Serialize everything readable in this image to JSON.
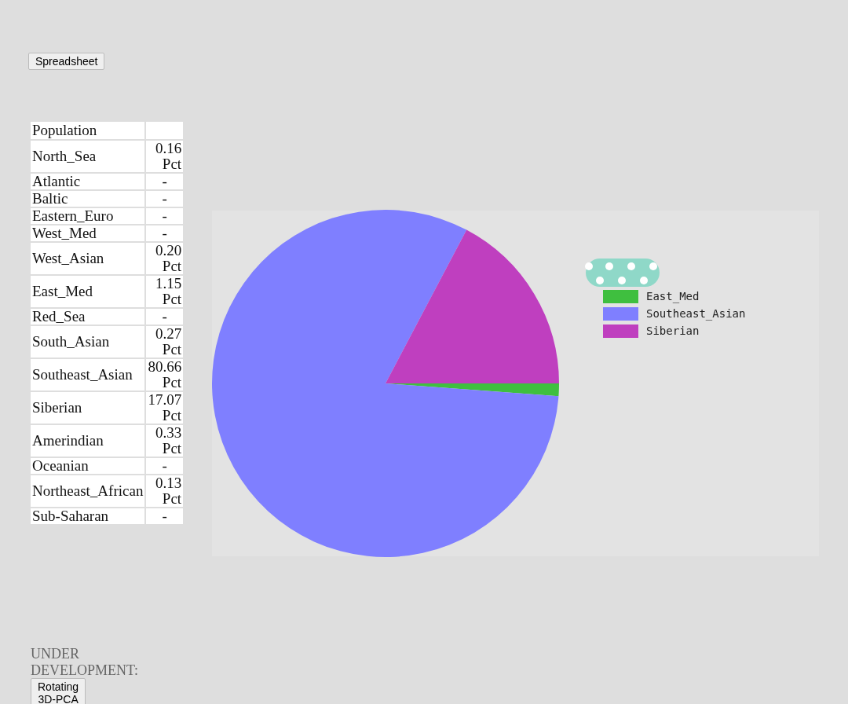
{
  "chart_data": [
    {
      "type": "other",
      "title": "Population",
      "categories": [
        "North_Sea",
        "Atlantic",
        "Baltic",
        "Eastern_Euro",
        "West_Med",
        "West_Asian",
        "East_Med",
        "Red_Sea",
        "South_Asian",
        "Southeast_Asian",
        "Siberian",
        "Amerindian",
        "Oceanian",
        "Northeast_African",
        "Sub-Saharan"
      ],
      "values": [
        0.16,
        null,
        null,
        null,
        null,
        0.2,
        1.15,
        null,
        0.27,
        80.66,
        17.07,
        0.33,
        null,
        0.13,
        null
      ],
      "value_labels": [
        "0.16 Pct",
        "-",
        "-",
        "-",
        "-",
        "0.20 Pct",
        "1.15 Pct",
        "-",
        "0.27 Pct",
        "80.66 Pct",
        "17.07 Pct",
        "0.33 Pct",
        "-",
        "0.13 Pct",
        "-"
      ],
      "annotations": [
        "Spreadsheet",
        "UNDER DEVELOPMENT:",
        "Rotating 3D-PCA"
      ]
    },
    {
      "type": "pie",
      "categories": [
        "East_Med",
        "Southeast_Asian",
        "Siberian"
      ],
      "values": [
        1.15,
        80.66,
        17.07
      ],
      "colors": [
        "#3fbf3f",
        "#7f7fff",
        "#bf3fbf"
      ],
      "legend": "right"
    }
  ]
}
